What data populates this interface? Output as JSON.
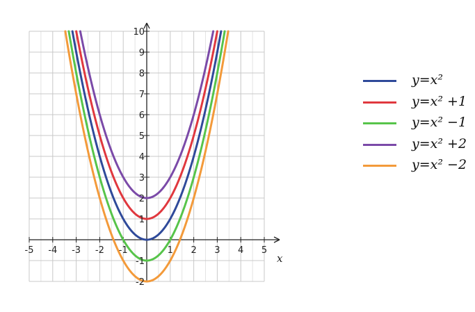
{
  "chart_data": {
    "type": "line",
    "xlabel": "x",
    "ylabel": "",
    "xlim": [
      -5,
      5
    ],
    "ylim": [
      -2,
      10
    ],
    "xticks": [
      -5,
      -4,
      -3,
      -2,
      -1,
      1,
      2,
      3,
      4,
      5
    ],
    "yticks": [
      -2,
      -1,
      1,
      2,
      3,
      4,
      5,
      6,
      7,
      8,
      9,
      10
    ],
    "xtick_labels": [
      "-5",
      "-4",
      "-3",
      "-2",
      "-1",
      "1",
      "2",
      "3",
      "4",
      "5"
    ],
    "ytick_labels": [
      "-2",
      "-1",
      "1",
      "2",
      "3",
      "4",
      "5",
      "6",
      "7",
      "8",
      "9",
      "10"
    ],
    "grid": true,
    "legend_position": "right",
    "series": [
      {
        "name": "y=x²",
        "formula": "x^2",
        "offset": 0,
        "color": "#2f4a9a",
        "vertex": [
          0,
          0
        ]
      },
      {
        "name": "y=x² +1",
        "formula": "x^2 + 1",
        "offset": 1,
        "color": "#e0383e",
        "vertex": [
          0,
          1
        ]
      },
      {
        "name": "y=x² −1",
        "formula": "x^2 - 1",
        "offset": -1,
        "color": "#57c44a",
        "vertex": [
          0,
          -1
        ]
      },
      {
        "name": "y=x² +2",
        "formula": "x^2 + 2",
        "offset": 2,
        "color": "#7b4aa8",
        "vertex": [
          0,
          2
        ]
      },
      {
        "name": "y=x² −2",
        "formula": "x^2 - 2",
        "offset": -2,
        "color": "#f39a3a",
        "vertex": [
          0,
          -2
        ]
      }
    ]
  }
}
